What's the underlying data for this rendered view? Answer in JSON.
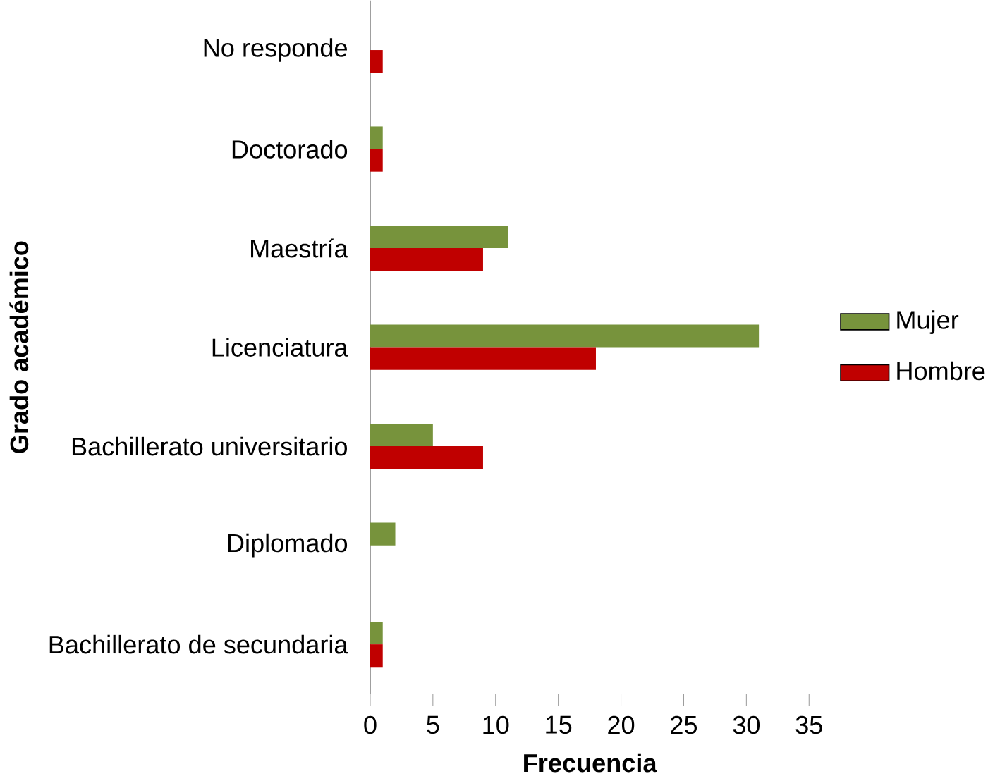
{
  "chart_data": {
    "type": "bar",
    "orientation": "horizontal",
    "xlabel": "Frecuencia",
    "ylabel": "Grado académico",
    "categories": [
      "No responde",
      "Doctorado",
      "Maestría",
      "Licenciatura",
      "Bachillerato universitario",
      "Diplomado",
      "Bachillerato de secundaria"
    ],
    "series": [
      {
        "name": "Mujer",
        "color": "#77933c",
        "values": [
          0,
          1,
          11,
          31,
          5,
          2,
          1
        ]
      },
      {
        "name": "Hombre",
        "color": "#c00000",
        "values": [
          1,
          1,
          9,
          18,
          9,
          0,
          1
        ]
      }
    ],
    "xlim": [
      0,
      35
    ],
    "xticks": [
      0,
      5,
      10,
      15,
      20,
      25,
      30,
      35
    ],
    "legend": "right",
    "grid": false
  }
}
